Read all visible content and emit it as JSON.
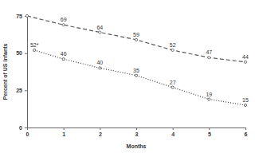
{
  "chart_data": {
    "type": "line",
    "x_label": "Months",
    "y_label": "Percent of US infants",
    "xlim": [
      0,
      6
    ],
    "xticks": [
      0,
      1,
      2,
      3,
      4,
      5,
      6
    ],
    "ylim": [
      0,
      75
    ],
    "yticks": [
      0,
      25,
      50,
      75
    ],
    "grid": false,
    "data_labels": true,
    "marker": "circle",
    "series": [
      {
        "color": "#595959",
        "line_style": "dashed",
        "x": [
          0,
          1,
          2,
          3,
          4,
          5,
          6
        ],
        "values": [
          75,
          69,
          64,
          59,
          52,
          47,
          44
        ],
        "value_labels": [
          null,
          "69",
          "64",
          "59",
          "52",
          "47",
          "44"
        ]
      },
      {
        "color": "#404040",
        "line_style": "dotted",
        "x": [
          0.2,
          1,
          2,
          3,
          4,
          5,
          6
        ],
        "values": [
          52,
          46,
          40,
          35,
          27,
          19,
          15
        ],
        "value_labels": [
          "52*",
          "46",
          "40",
          "35",
          "27",
          "19",
          "15"
        ]
      }
    ]
  }
}
